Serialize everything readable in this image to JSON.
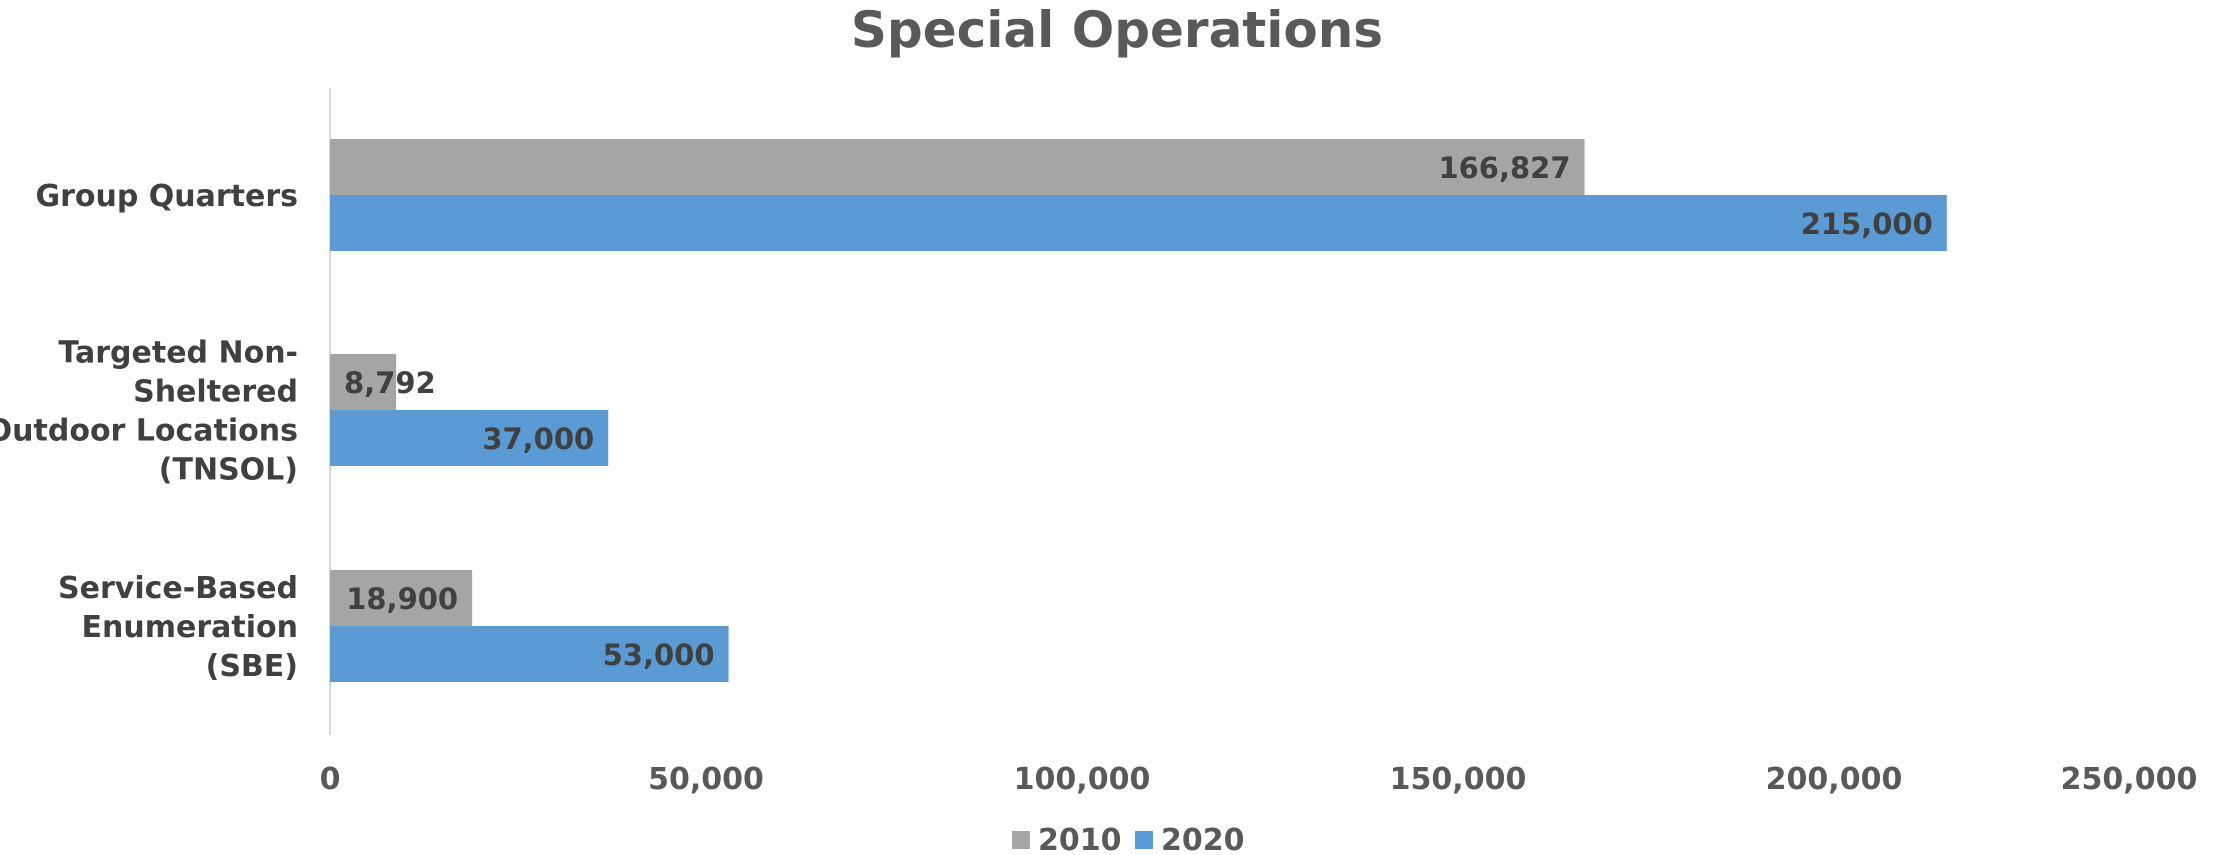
{
  "chart_data": {
    "type": "bar",
    "orientation": "horizontal",
    "title": "Special Operations",
    "categories": [
      "Group Quarters",
      "Targeted Non-Sheltered Outdoor Locations (TNSOL)",
      "Service-Based Enumeration (SBE)"
    ],
    "series": [
      {
        "name": "2010",
        "values": [
          166827,
          8792,
          18900
        ],
        "labels": [
          "166,827",
          "8,792",
          "18,900"
        ]
      },
      {
        "name": "2020",
        "values": [
          215000,
          37000,
          53000
        ],
        "labels": [
          "215,000",
          "37,000",
          "53,000"
        ]
      }
    ],
    "xlim": [
      0,
      250000
    ],
    "ticks": [
      {
        "value": 0,
        "label": "0"
      },
      {
        "value": 50000,
        "label": "50,000"
      },
      {
        "value": 100000,
        "label": "100,000"
      },
      {
        "value": 150000,
        "label": "150,000"
      },
      {
        "value": 200000,
        "label": "200,000"
      },
      {
        "value": 250000,
        "label": "250,000"
      }
    ],
    "grid": false,
    "legend": "bottom",
    "colors": {
      "2010": "#A5A5A5",
      "2020": "#5B9BD5"
    }
  }
}
